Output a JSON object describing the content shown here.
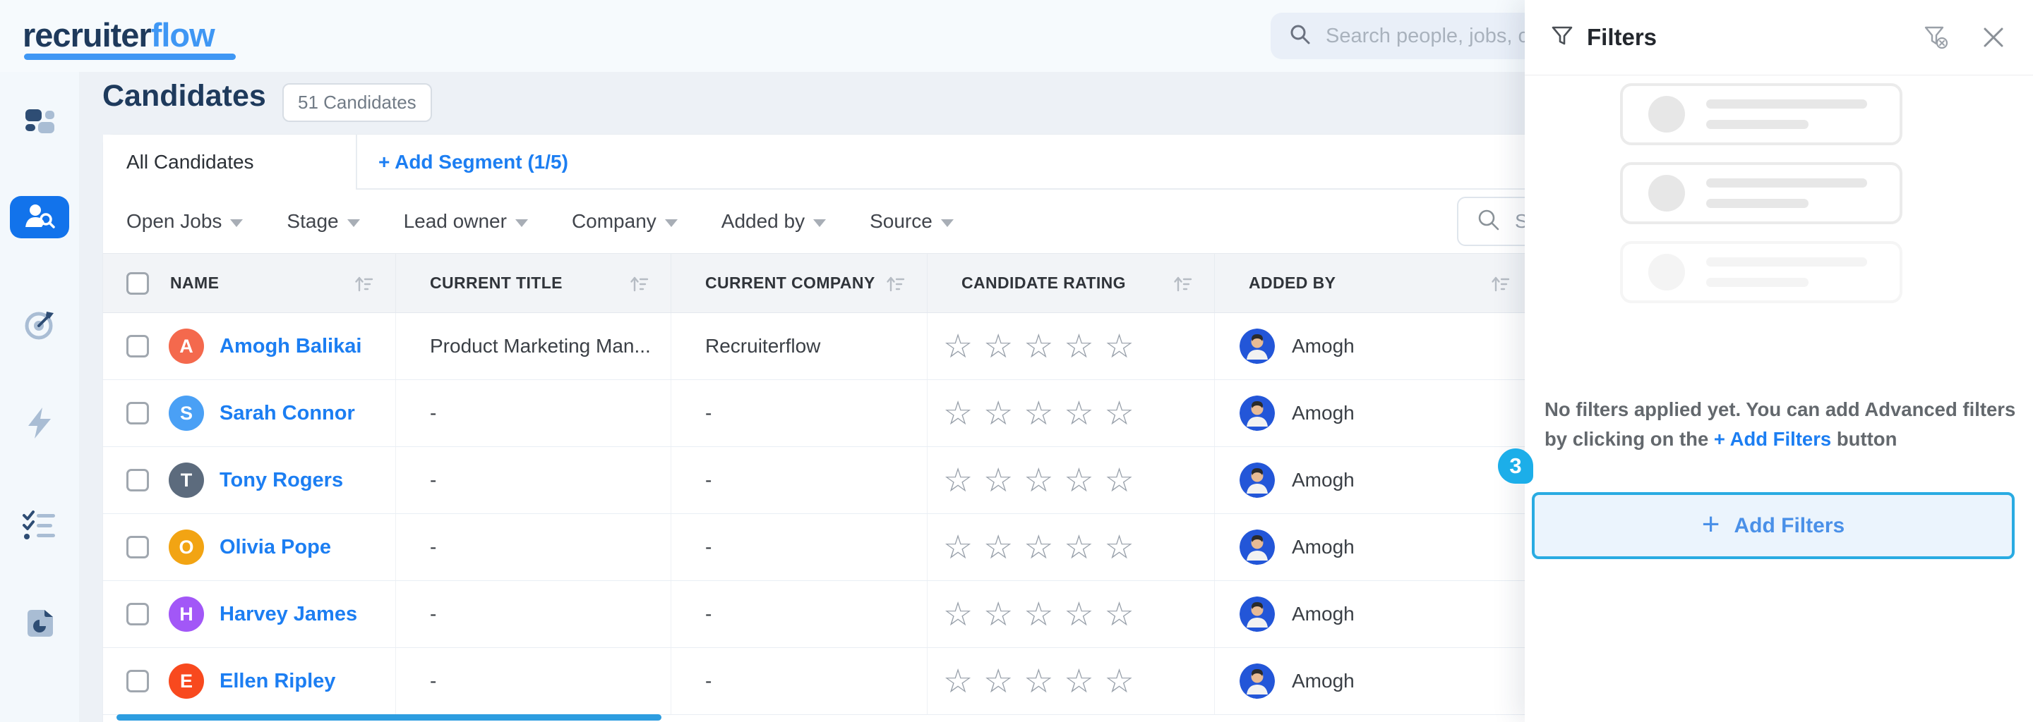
{
  "brand": {
    "primary": "recruiter",
    "secondary": "flow"
  },
  "topbar": {
    "search_placeholder": "Search people, jobs, c"
  },
  "sidebar": {
    "items": [
      {
        "icon": "dashboard-icon",
        "active": false
      },
      {
        "icon": "candidates-icon",
        "active": true
      },
      {
        "icon": "goals-target-icon",
        "active": false
      },
      {
        "icon": "automation-bolt-icon",
        "active": false
      },
      {
        "icon": "tasks-checklist-icon",
        "active": false
      },
      {
        "icon": "reports-document-icon",
        "active": false
      }
    ]
  },
  "page": {
    "title": "Candidates",
    "count_badge": "51 Candidates"
  },
  "tabs": {
    "all_candidates": "All Candidates",
    "add_segment": "+ Add Segment (1/5)"
  },
  "filter_bar": {
    "dropdowns": [
      "Open Jobs",
      "Stage",
      "Lead owner",
      "Company",
      "Added by",
      "Source"
    ],
    "search_placeholder": "Se"
  },
  "table": {
    "headers": [
      "NAME",
      "CURRENT TITLE",
      "CURRENT COMPANY",
      "CANDIDATE RATING",
      "ADDED BY"
    ],
    "rows": [
      {
        "name": "Amogh Balikai",
        "initial": "A",
        "avatar_color": "#F4694D",
        "current_title": "Product Marketing Man...",
        "current_company": "Recruiterflow",
        "rating": 0,
        "rating_max": 5,
        "added_by": "Amogh"
      },
      {
        "name": "Sarah Connor",
        "initial": "S",
        "avatar_color": "#4AA0F5",
        "current_title": "-",
        "current_company": "-",
        "rating": 0,
        "rating_max": 5,
        "added_by": "Amogh"
      },
      {
        "name": "Tony Rogers",
        "initial": "T",
        "avatar_color": "#5C6B7D",
        "current_title": "-",
        "current_company": "-",
        "rating": 0,
        "rating_max": 5,
        "added_by": "Amogh"
      },
      {
        "name": "Olivia Pope",
        "initial": "O",
        "avatar_color": "#F2A413",
        "current_title": "-",
        "current_company": "-",
        "rating": 0,
        "rating_max": 5,
        "added_by": "Amogh"
      },
      {
        "name": "Harvey James",
        "initial": "H",
        "avatar_color": "#A257F7",
        "current_title": "-",
        "current_company": "-",
        "rating": 0,
        "rating_max": 5,
        "added_by": "Amogh"
      },
      {
        "name": "Ellen Ripley",
        "initial": "E",
        "avatar_color": "#F8491E",
        "current_title": "-",
        "current_company": "-",
        "rating": 0,
        "rating_max": 5,
        "added_by": "Amogh"
      }
    ]
  },
  "filter_panel": {
    "title": "Filters",
    "empty_line1": "No filters applied yet. You can add Advanced filters",
    "empty_line2_prefix": "by clicking on the ",
    "empty_line2_link": "+ Add Filters",
    "empty_line2_suffix": " button",
    "add_filters_plus": "+",
    "add_filters_label": "Add Filters",
    "coach_badge": "3"
  },
  "colors": {
    "accent_blue": "#1C7EF2",
    "active_nav_blue": "#1273EB",
    "button_border_blue": "#29ABE2",
    "coach_badge_blue": "#1CAEE9",
    "star_gray": "#98A0AA",
    "scrollbar_blue": "#2D9DE0"
  }
}
